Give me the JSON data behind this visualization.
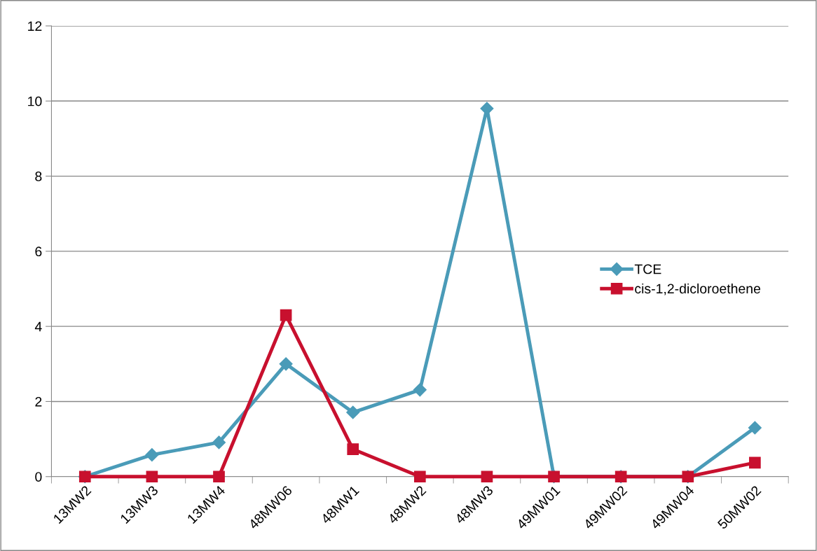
{
  "chart_data": {
    "type": "line",
    "categories": [
      "13MW2",
      "13MW3",
      "13MW4",
      "48MW06",
      "48MW1",
      "48MW2",
      "48MW3",
      "49MW01",
      "49MW02",
      "49MW04",
      "50MW02"
    ],
    "series": [
      {
        "name": "TCE",
        "color": "#4a9bb8",
        "marker": "diamond",
        "values": [
          0,
          0.58,
          0.91,
          3.0,
          1.71,
          2.31,
          9.8,
          0,
          0,
          0,
          1.3
        ]
      },
      {
        "name": "cis-1,2-dicloroethene",
        "color": "#c8102e",
        "marker": "square",
        "values": [
          0,
          0,
          0,
          4.3,
          0.73,
          0,
          0,
          0,
          0,
          0,
          0.37
        ]
      }
    ],
    "ylim": [
      0,
      12
    ],
    "yticks": [
      0,
      2,
      4,
      6,
      8,
      10,
      12
    ],
    "grid": "y",
    "legend": "right",
    "line_style": "solid"
  }
}
